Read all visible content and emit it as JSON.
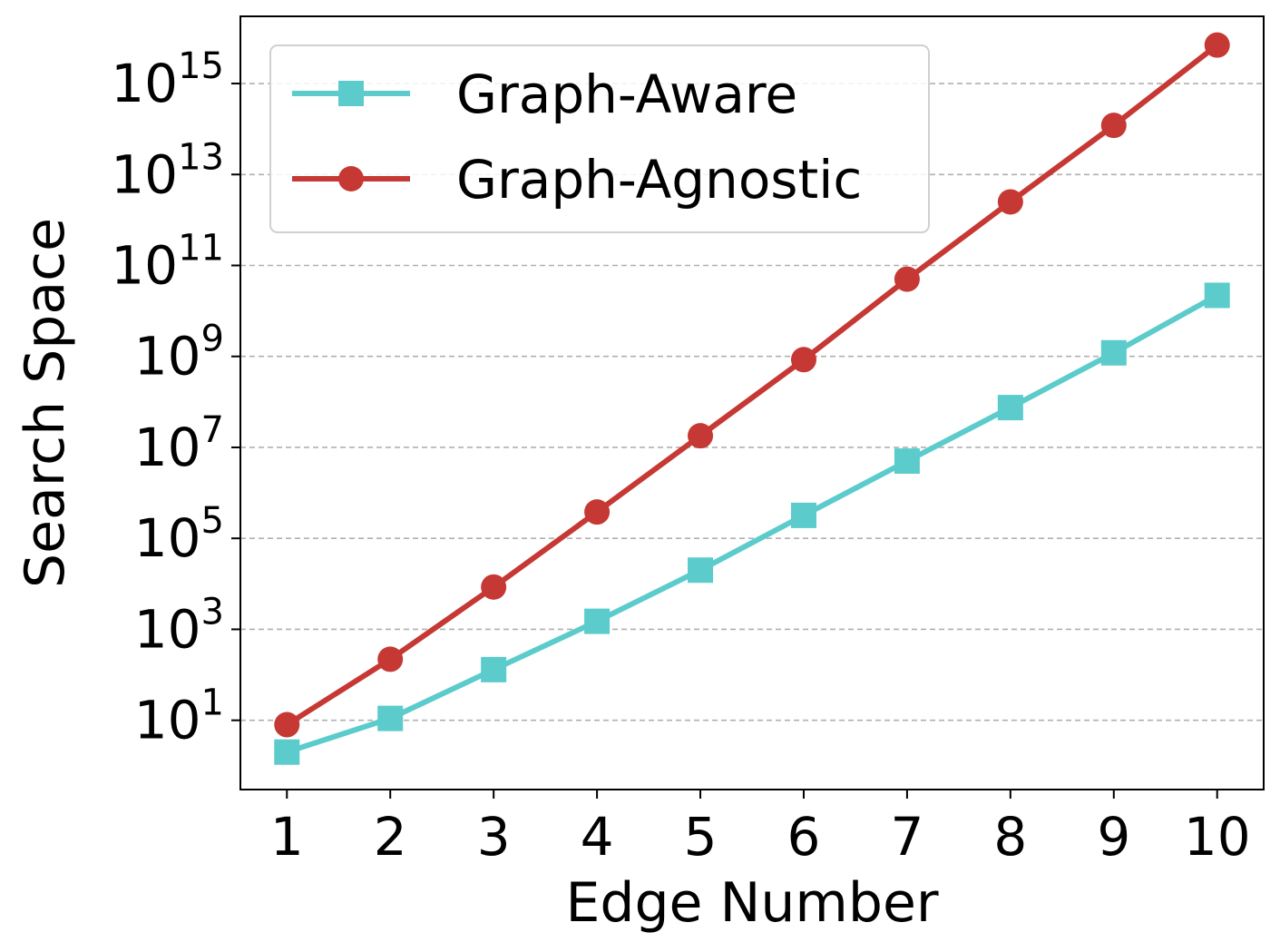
{
  "chart_data": {
    "type": "line",
    "xlabel": "Edge Number",
    "ylabel": "Search Space",
    "y_scale": "log",
    "ylim": [
      0.3,
      3e+16
    ],
    "xlim": [
      0.55,
      10.45
    ],
    "grid": "horizontal-dashed",
    "legend_position": "top-left",
    "x": [
      1,
      2,
      3,
      4,
      5,
      6,
      7,
      8,
      9,
      10
    ],
    "x_ticks": [
      "1",
      "2",
      "3",
      "4",
      "5",
      "6",
      "7",
      "8",
      "9",
      "10"
    ],
    "y_ticks": [
      {
        "value": 10,
        "base": "10",
        "exp": "1"
      },
      {
        "value": 1000,
        "base": "10",
        "exp": "3"
      },
      {
        "value": 100000,
        "base": "10",
        "exp": "5"
      },
      {
        "value": 10000000,
        "base": "10",
        "exp": "7"
      },
      {
        "value": 1000000000,
        "base": "10",
        "exp": "9"
      },
      {
        "value": 100000000000,
        "base": "10",
        "exp": "11"
      },
      {
        "value": 10000000000000,
        "base": "10",
        "exp": "13"
      },
      {
        "value": 1000000000000000,
        "base": "10",
        "exp": "15"
      }
    ],
    "series": [
      {
        "name": "Graph-Aware",
        "color": "#5bcbcc",
        "marker": "square",
        "values": [
          2,
          11,
          130,
          1500,
          20000,
          320000,
          5000000,
          75000000,
          1200000000,
          22000000000
        ]
      },
      {
        "name": "Graph-Agnostic",
        "color": "#c63833",
        "marker": "circle",
        "values": [
          8,
          220,
          8500,
          380000,
          18000000,
          850000000,
          50000000000,
          2500000000000,
          120000000000000,
          7000000000000000
        ]
      }
    ]
  }
}
